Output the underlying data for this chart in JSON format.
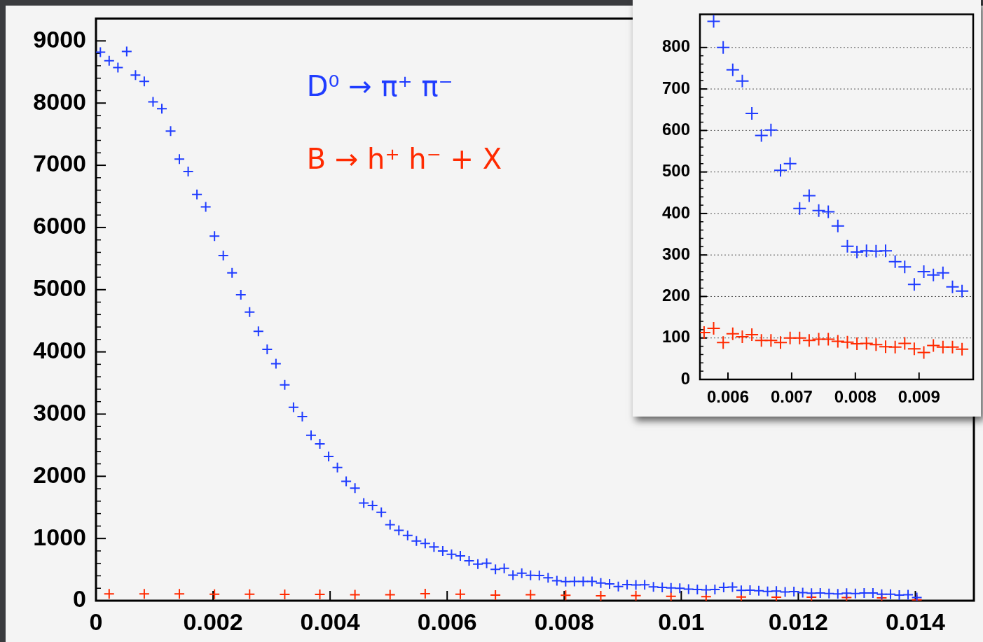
{
  "chart_data": [
    {
      "type": "scatter",
      "marker": "cross",
      "grid": false,
      "legend": false,
      "xlim": [
        0,
        0.015
      ],
      "ylim": [
        0,
        9360
      ],
      "xticks": [
        0,
        0.002,
        0.004,
        0.006,
        0.008,
        0.01,
        0.012,
        0.014
      ],
      "yticks": [
        0,
        1000,
        2000,
        3000,
        4000,
        5000,
        6000,
        7000,
        8000,
        9000
      ],
      "series": [
        {
          "name": "D⁰ → π⁺ π⁻",
          "color": "#1f3cff",
          "x": [
            7.5e-05,
            0.000225,
            0.000375,
            0.000525,
            0.000675,
            0.000825,
            0.000975,
            0.001125,
            0.001275,
            0.001425,
            0.001575,
            0.001725,
            0.001875,
            0.002025,
            0.002175,
            0.002325,
            0.002475,
            0.002625,
            0.002775,
            0.002925,
            0.003075,
            0.003225,
            0.003375,
            0.003525,
            0.003675,
            0.003825,
            0.003975,
            0.004125,
            0.004275,
            0.004425,
            0.004575,
            0.004725,
            0.004875,
            0.005025,
            0.005175,
            0.005325,
            0.005475,
            0.005625,
            0.005775,
            0.005925,
            0.006075,
            0.006225,
            0.006375,
            0.006525,
            0.006675,
            0.006825,
            0.006975,
            0.007125,
            0.007275,
            0.007425,
            0.007575,
            0.007725,
            0.007875,
            0.008025,
            0.008175,
            0.008325,
            0.008475,
            0.008625,
            0.008775,
            0.008925,
            0.009075,
            0.009225,
            0.009375,
            0.009525,
            0.009675,
            0.009825,
            0.009975,
            0.010125,
            0.010275,
            0.010425,
            0.010575,
            0.010725,
            0.010875,
            0.011025,
            0.011175,
            0.011325,
            0.011475,
            0.011625,
            0.011775,
            0.011925,
            0.012075,
            0.012225,
            0.012375,
            0.012525,
            0.012675,
            0.012825,
            0.012975,
            0.013125,
            0.013275,
            0.013425,
            0.013575,
            0.013725,
            0.013875,
            0.014025
          ],
          "values": [
            8820,
            8680,
            8570,
            8830,
            8450,
            8350,
            8020,
            7910,
            7550,
            7100,
            6900,
            6530,
            6330,
            5860,
            5550,
            5270,
            4920,
            4640,
            4330,
            4040,
            3810,
            3470,
            3110,
            2960,
            2660,
            2520,
            2320,
            2140,
            1920,
            1810,
            1570,
            1530,
            1420,
            1220,
            1130,
            1050,
            960,
            920,
            863,
            800,
            746,
            719,
            641,
            588,
            601,
            504,
            520,
            412,
            443,
            407,
            404,
            370,
            321,
            307,
            310,
            309,
            310,
            284,
            271,
            229,
            260,
            252,
            257,
            223,
            213,
            205,
            200,
            185,
            180,
            175,
            180,
            215,
            220,
            165,
            170,
            160,
            150,
            155,
            140,
            145,
            130,
            120,
            125,
            115,
            110,
            120,
            115,
            125,
            125,
            105,
            105,
            90,
            95,
            50
          ]
        },
        {
          "name": "B → h⁺ h⁻ + X",
          "color": "#ff2a00",
          "x": [
            0.000225,
            0.000825,
            0.001425,
            0.002025,
            0.002625,
            0.003225,
            0.003825,
            0.004425,
            0.005025,
            0.005625,
            0.006225,
            0.006825,
            0.007425,
            0.008025,
            0.008625,
            0.009225,
            0.009825,
            0.010425,
            0.011025,
            0.011625,
            0.012225,
            0.012825,
            0.013425,
            0.014025
          ],
          "values": [
            110,
            110,
            110,
            105,
            105,
            100,
            100,
            95,
            95,
            113,
            103,
            89,
            97,
            86,
            78,
            82,
            70,
            65,
            60,
            55,
            55,
            50,
            45,
            15
          ]
        }
      ]
    },
    {
      "type": "scatter",
      "marker": "cross",
      "grid": "y",
      "legend": false,
      "xlim": [
        0.00556,
        0.00985
      ],
      "ylim": [
        0,
        880
      ],
      "xticks": [
        0.006,
        0.007,
        0.008,
        0.009
      ],
      "yticks": [
        0,
        100,
        200,
        300,
        400,
        500,
        600,
        700,
        800
      ],
      "series": [
        {
          "color": "#1f3cff",
          "x": [
            0.005775,
            0.005925,
            0.006075,
            0.006225,
            0.006375,
            0.006525,
            0.006675,
            0.006825,
            0.006975,
            0.007125,
            0.007275,
            0.007425,
            0.007575,
            0.007725,
            0.007875,
            0.008025,
            0.008175,
            0.008325,
            0.008475,
            0.008625,
            0.008775,
            0.008925,
            0.009075,
            0.009225,
            0.009375,
            0.009525,
            0.009675
          ],
          "values": [
            863,
            800,
            746,
            719,
            641,
            588,
            601,
            504,
            520,
            412,
            443,
            407,
            404,
            370,
            321,
            307,
            310,
            309,
            310,
            284,
            271,
            229,
            260,
            252,
            257,
            223,
            213
          ]
        },
        {
          "color": "#ff2a00",
          "x": [
            0.005625,
            0.005775,
            0.005925,
            0.006075,
            0.006225,
            0.006375,
            0.006525,
            0.006675,
            0.006825,
            0.006975,
            0.007125,
            0.007275,
            0.007425,
            0.007575,
            0.007725,
            0.007875,
            0.008025,
            0.008175,
            0.008325,
            0.008475,
            0.008625,
            0.008775,
            0.008925,
            0.009075,
            0.009225,
            0.009375,
            0.009525,
            0.009675
          ],
          "values": [
            113,
            123,
            89,
            110,
            103,
            108,
            94,
            94,
            89,
            100,
            100,
            94,
            97,
            97,
            92,
            90,
            86,
            87,
            84,
            79,
            78,
            87,
            74,
            65,
            82,
            78,
            78,
            73
          ]
        }
      ]
    }
  ]
}
